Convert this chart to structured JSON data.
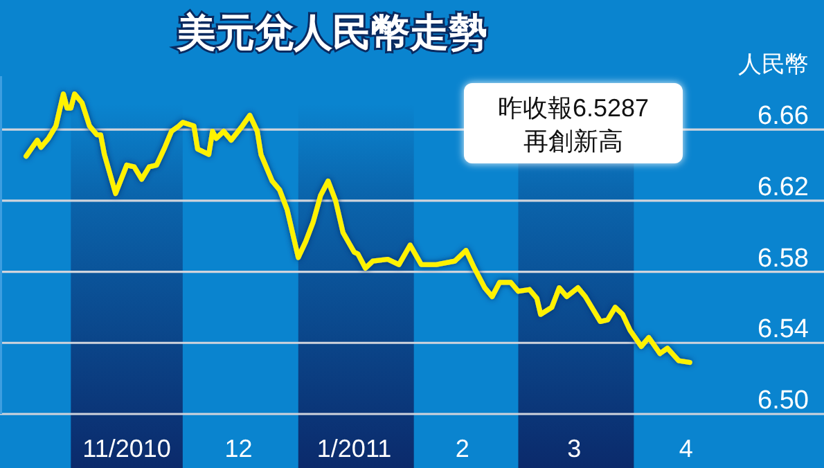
{
  "chart_data": {
    "type": "line",
    "title": "美元兌人民幣走勢",
    "ylabel": "人民幣",
    "annotations": [
      "昨收報6.5287\n再創新高"
    ],
    "xlim": [
      "2010-10-13",
      "2011-05-22"
    ],
    "xticks": [
      {
        "value": "2010-11-16",
        "label": "11/2010"
      },
      {
        "value": "2010-12-16",
        "label": "12"
      },
      {
        "value": "2011-01-16",
        "label": "1/2011"
      },
      {
        "value": "2011-02-14",
        "label": "2"
      },
      {
        "value": "2011-03-16",
        "label": "3"
      },
      {
        "value": "2011-04-15",
        "label": "4"
      }
    ],
    "ylim": [
      6.5,
      6.69
    ],
    "yticks": [
      6.66,
      6.62,
      6.58,
      6.54,
      {
        "value": 6.5,
        "label": "6.50"
      }
    ],
    "grid": "y",
    "bands": [
      {
        "axis": "x",
        "from": "2010-11-01",
        "to": "2010-12-01",
        "color": "#0b2a6b"
      },
      {
        "axis": "x",
        "from": "2011-01-01",
        "to": "2011-02-01",
        "color": "#0b2a6b"
      },
      {
        "axis": "x",
        "from": "2011-03-01",
        "to": "2011-04-01",
        "color": "#0b2a6b"
      }
    ],
    "series": [
      {
        "color": "#fff200",
        "x": [
          "2010-10-20",
          "2010-10-23",
          "2010-10-24",
          "2010-10-26",
          "2010-10-28",
          "2010-10-30",
          "2010-10-31",
          "2010-11-01",
          "2010-11-02",
          "2010-11-04",
          "2010-11-06",
          "2010-11-08",
          "2010-11-09",
          "2010-11-10",
          "2010-11-13",
          "2010-11-16",
          "2010-11-18",
          "2010-11-20",
          "2010-11-22",
          "2010-11-24",
          "2010-11-26",
          "2010-11-28",
          "2010-11-30",
          "2010-12-01",
          "2010-12-04",
          "2010-12-05",
          "2010-12-08",
          "2010-12-09",
          "2010-12-10",
          "2010-12-12",
          "2010-12-14",
          "2010-12-17",
          "2010-12-19",
          "2010-12-21",
          "2010-12-22",
          "2010-12-25",
          "2010-12-27",
          "2010-12-29",
          "2011-01-01",
          "2011-01-03",
          "2011-01-05",
          "2011-01-07",
          "2011-01-09",
          "2011-01-11",
          "2011-01-13",
          "2011-01-16",
          "2011-01-17",
          "2011-01-19",
          "2011-01-21",
          "2011-01-25",
          "2011-01-28",
          "2011-01-31",
          "2011-02-03",
          "2011-02-07",
          "2011-02-12",
          "2011-02-15",
          "2011-02-17",
          "2011-02-20",
          "2011-02-22",
          "2011-02-24",
          "2011-02-27",
          "2011-03-01",
          "2011-03-04",
          "2011-03-06",
          "2011-03-07",
          "2011-03-10",
          "2011-03-12",
          "2011-03-14",
          "2011-03-17",
          "2011-03-19",
          "2011-03-23",
          "2011-03-25",
          "2011-03-27",
          "2011-03-29",
          "2011-03-31",
          "2011-04-03",
          "2011-04-05",
          "2011-04-08",
          "2011-04-10",
          "2011-04-13",
          "2011-04-16"
        ],
        "values": [
          6.645,
          6.654,
          6.65,
          6.655,
          6.662,
          6.68,
          6.672,
          6.672,
          6.68,
          6.675,
          6.662,
          6.657,
          6.657,
          6.646,
          6.624,
          6.64,
          6.639,
          6.632,
          6.639,
          6.64,
          6.649,
          6.659,
          6.662,
          6.664,
          6.662,
          6.649,
          6.646,
          6.659,
          6.655,
          6.659,
          6.654,
          6.662,
          6.668,
          6.659,
          6.646,
          6.631,
          6.626,
          6.615,
          6.588,
          6.597,
          6.608,
          6.623,
          6.631,
          6.62,
          6.602,
          6.591,
          6.59,
          6.582,
          6.586,
          6.587,
          6.584,
          6.595,
          6.584,
          6.584,
          6.586,
          6.592,
          6.583,
          6.571,
          6.566,
          6.574,
          6.574,
          6.569,
          6.57,
          6.565,
          6.556,
          6.56,
          6.571,
          6.566,
          6.571,
          6.566,
          6.552,
          6.553,
          6.56,
          6.556,
          6.547,
          6.538,
          6.543,
          6.534,
          6.537,
          6.53,
          6.529
        ]
      }
    ]
  }
}
